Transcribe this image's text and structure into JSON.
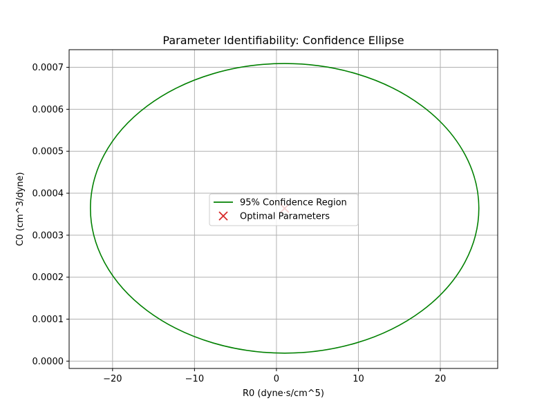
{
  "chart_data": {
    "type": "line",
    "title": "Parameter Identifiability: Confidence Ellipse",
    "xlabel": "R0 (dyne·s/cm^5)",
    "ylabel": "C0 (cm^3/dyne)",
    "xlim": [
      -25.3,
      27.0
    ],
    "ylim": [
      -1.75e-05,
      0.000742
    ],
    "xticks": [
      -20,
      -10,
      0,
      10,
      20
    ],
    "xtick_labels": [
      "−20",
      "−10",
      "0",
      "10",
      "20"
    ],
    "yticks": [
      0.0,
      0.0001,
      0.0002,
      0.0003,
      0.0004,
      0.0005,
      0.0006,
      0.0007
    ],
    "ytick_labels": [
      "0.0000",
      "0.0001",
      "0.0002",
      "0.0003",
      "0.0004",
      "0.0005",
      "0.0006",
      "0.0007"
    ],
    "grid": true,
    "legend_position": "center",
    "series": [
      {
        "name": "95% Confidence Region",
        "kind": "ellipse",
        "color": "#008000",
        "center": [
          1.0,
          0.000364
        ],
        "x_radius": 23.7,
        "y_radius": 0.000345
      },
      {
        "name": "Optimal Parameters",
        "kind": "scatter",
        "marker": "x",
        "color": "#d62728",
        "points": [
          [
            1.0,
            0.000364
          ]
        ]
      }
    ]
  }
}
